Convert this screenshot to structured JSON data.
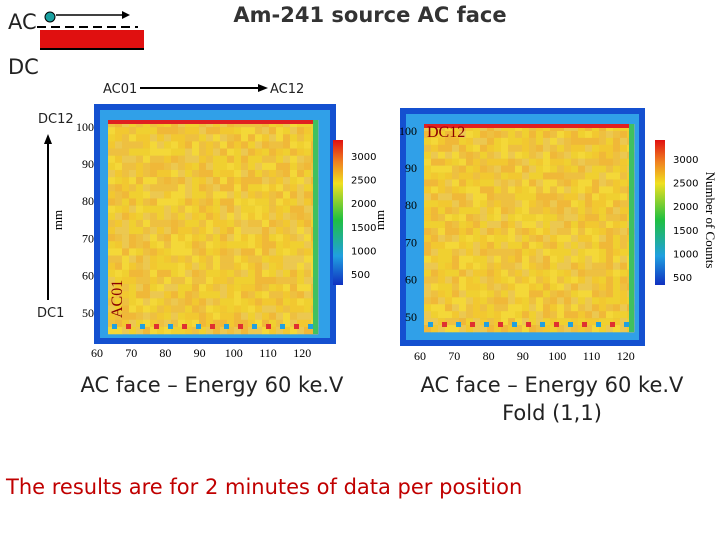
{
  "header": {
    "title": "Am-241 source AC face"
  },
  "diagram": {
    "ac": "AC",
    "dc": "DC"
  },
  "orientation": {
    "ac01": "AC01",
    "ac12": "AC12",
    "dc12": "DC12",
    "dc1": "DC1"
  },
  "left_map": {
    "y_axis_label": "mm",
    "yticks": [
      100,
      90,
      80,
      70,
      60,
      50
    ],
    "xticks": [
      60,
      70,
      80,
      90,
      100,
      110,
      120
    ],
    "colorbar_ticks": [
      3000,
      2500,
      2000,
      1500,
      1000,
      500
    ],
    "corner_label": "AC01"
  },
  "right_map": {
    "y_axis_label": "mm",
    "yticks": [
      100,
      90,
      80,
      70,
      60,
      50
    ],
    "xticks": [
      60,
      70,
      80,
      90,
      100,
      110,
      120
    ],
    "colorbar_ticks": [
      3000,
      2500,
      2000,
      1500,
      1000,
      500
    ],
    "corner_label": "DC12",
    "colorbar_title": "Number of Counts"
  },
  "captions": {
    "left": "AC face – Energy 60 ke.V",
    "right": [
      "AC face – Energy 60 ke.V",
      "Fold (1,1)"
    ]
  },
  "footer": "The results are for 2 minutes of data per position"
}
